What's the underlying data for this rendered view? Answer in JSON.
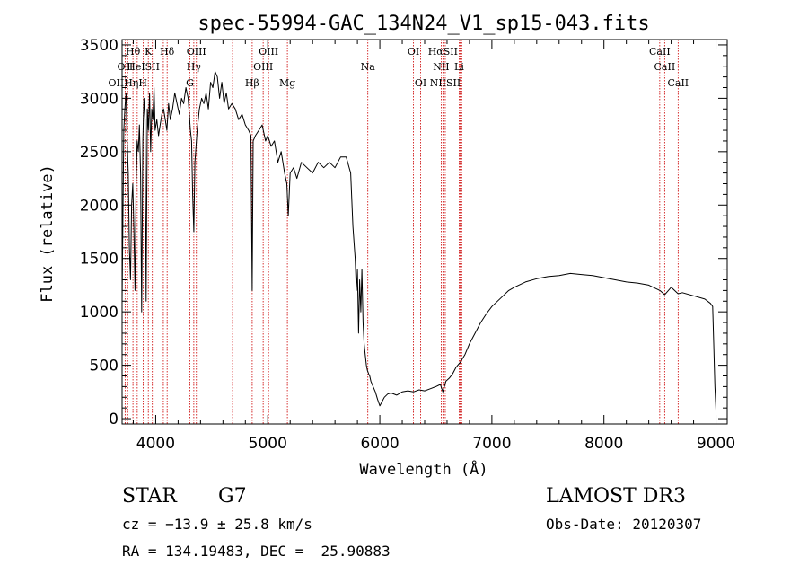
{
  "chart_data": {
    "type": "line",
    "title": "spec-55994-GAC_134N24_V1_sp15-043.fits",
    "xlabel": "Wavelength (Å)",
    "ylabel": "Flux (relative)",
    "xlim": [
      3700,
      9100
    ],
    "ylim": [
      -50,
      3550
    ],
    "xticks": [
      4000,
      5000,
      6000,
      7000,
      8000,
      9000
    ],
    "yticks": [
      0,
      500,
      1000,
      1500,
      2000,
      2500,
      3000,
      3500
    ],
    "series": [
      {
        "name": "spectrum",
        "x": [
          3700,
          3715,
          3725,
          3735,
          3745,
          3755,
          3765,
          3775,
          3785,
          3795,
          3805,
          3815,
          3825,
          3835,
          3845,
          3855,
          3865,
          3875,
          3885,
          3895,
          3905,
          3915,
          3925,
          3935,
          3945,
          3955,
          3965,
          3975,
          3985,
          3995,
          4010,
          4025,
          4040,
          4055,
          4070,
          4085,
          4100,
          4115,
          4130,
          4150,
          4170,
          4190,
          4210,
          4230,
          4250,
          4270,
          4290,
          4310,
          4320,
          4330,
          4340,
          4350,
          4370,
          4390,
          4410,
          4430,
          4450,
          4470,
          4490,
          4510,
          4530,
          4550,
          4570,
          4590,
          4610,
          4630,
          4650,
          4680,
          4710,
          4740,
          4770,
          4800,
          4830,
          4850,
          4861,
          4870,
          4890,
          4920,
          4950,
          4980,
          5000,
          5030,
          5060,
          5090,
          5120,
          5150,
          5170,
          5183,
          5200,
          5230,
          5260,
          5300,
          5350,
          5400,
          5450,
          5500,
          5550,
          5600,
          5650,
          5700,
          5740,
          5760,
          5780,
          5790,
          5800,
          5810,
          5820,
          5830,
          5840,
          5850,
          5860,
          5870,
          5880,
          5890,
          5900,
          5910,
          5920,
          5940,
          5960,
          5980,
          6000,
          6020,
          6040,
          6070,
          6100,
          6150,
          6200,
          6250,
          6300,
          6350,
          6400,
          6450,
          6500,
          6540,
          6563,
          6590,
          6620,
          6650,
          6680,
          6720,
          6760,
          6800,
          6850,
          6900,
          6950,
          7000,
          7050,
          7100,
          7150,
          7200,
          7300,
          7400,
          7500,
          7600,
          7700,
          7800,
          7900,
          8000,
          8100,
          8200,
          8300,
          8400,
          8500,
          8542,
          8600,
          8662,
          8700,
          8800,
          8900,
          8950,
          8970,
          8980,
          8990,
          9000
        ],
        "values": [
          1100,
          2700,
          2900,
          3050,
          2600,
          2300,
          1600,
          1300,
          2000,
          2200,
          1800,
          1200,
          2200,
          2600,
          2500,
          2750,
          2300,
          1000,
          2600,
          3000,
          2800,
          1100,
          2900,
          2700,
          3050,
          2500,
          2900,
          2800,
          3100,
          2700,
          2800,
          2650,
          2750,
          2850,
          2900,
          2800,
          2700,
          2950,
          2800,
          2900,
          3050,
          2950,
          2850,
          3000,
          2950,
          3100,
          3000,
          2700,
          2600,
          2100,
          1750,
          2400,
          2700,
          2900,
          3000,
          2950,
          3050,
          2900,
          3150,
          3100,
          3250,
          3200,
          3000,
          3150,
          2950,
          3050,
          2900,
          2950,
          2900,
          2800,
          2850,
          2750,
          2700,
          2650,
          1200,
          2600,
          2650,
          2700,
          2750,
          2600,
          2650,
          2550,
          2600,
          2400,
          2500,
          2300,
          2200,
          1900,
          2300,
          2350,
          2250,
          2400,
          2350,
          2300,
          2400,
          2350,
          2400,
          2350,
          2450,
          2450,
          2300,
          1800,
          1500,
          1200,
          1400,
          800,
          1300,
          1000,
          1400,
          900,
          700,
          600,
          500,
          450,
          420,
          400,
          350,
          300,
          250,
          180,
          120,
          160,
          200,
          230,
          240,
          220,
          250,
          260,
          250,
          270,
          260,
          280,
          300,
          320,
          250,
          350,
          380,
          420,
          480,
          530,
          600,
          700,
          800,
          900,
          980,
          1050,
          1100,
          1150,
          1200,
          1230,
          1280,
          1310,
          1330,
          1340,
          1360,
          1350,
          1340,
          1320,
          1300,
          1280,
          1270,
          1250,
          1200,
          1160,
          1230,
          1170,
          1180,
          1150,
          1120,
          1080,
          1050,
          700,
          300,
          80
        ]
      }
    ],
    "lines": [
      {
        "label": "Hθ",
        "x": 3797,
        "row": 0
      },
      {
        "label": "K",
        "x": 3934,
        "row": 0
      },
      {
        "label": "Hδ",
        "x": 4102,
        "row": 0
      },
      {
        "label": "OIII",
        "x": 4363,
        "row": 0
      },
      {
        "label": "OIII",
        "x": 5007,
        "row": 0
      },
      {
        "label": "OI",
        "x": 6300,
        "row": 0
      },
      {
        "label": "HαSII",
        "x": 6563,
        "row": 0
      },
      {
        "label": "CaII",
        "x": 8498,
        "row": 0
      },
      {
        "label": "OII",
        "x": 3727,
        "row": 1
      },
      {
        "label": "HeISII",
        "x": 3889,
        "row": 1
      },
      {
        "label": "Hγ",
        "x": 4340,
        "row": 1
      },
      {
        "label": "OIII",
        "x": 4959,
        "row": 1
      },
      {
        "label": "Na",
        "x": 5893,
        "row": 1
      },
      {
        "label": "NII",
        "x": 6548,
        "row": 1
      },
      {
        "label": "Li",
        "x": 6708,
        "row": 1
      },
      {
        "label": "CaII",
        "x": 8542,
        "row": 1
      },
      {
        "label": "OIIHηH",
        "x": 3750,
        "row": 2
      },
      {
        "label": "G",
        "x": 4305,
        "row": 2
      },
      {
        "label": "Hβ",
        "x": 4861,
        "row": 2
      },
      {
        "label": "Mg",
        "x": 5175,
        "row": 2
      },
      {
        "label": "OI",
        "x": 6364,
        "row": 2
      },
      {
        "label": "NIISII",
        "x": 6584,
        "row": 2
      },
      {
        "label": "CaII",
        "x": 8662,
        "row": 2
      }
    ],
    "line_x_extra": [
      3835,
      3970,
      4068,
      4686,
      6717,
      6731
    ]
  },
  "info": {
    "star_class": "STAR",
    "subclass": "G7",
    "survey": "LAMOST DR3",
    "cz": "cz = −13.9 ± 25.8 km/s",
    "obs_date": "Obs-Date: 20120307",
    "coords": "RA = 134.19483, DEC =  25.90883"
  },
  "colors": {
    "line_markers": "#cc0000",
    "spectrum": "#000000",
    "axes": "#000000"
  }
}
